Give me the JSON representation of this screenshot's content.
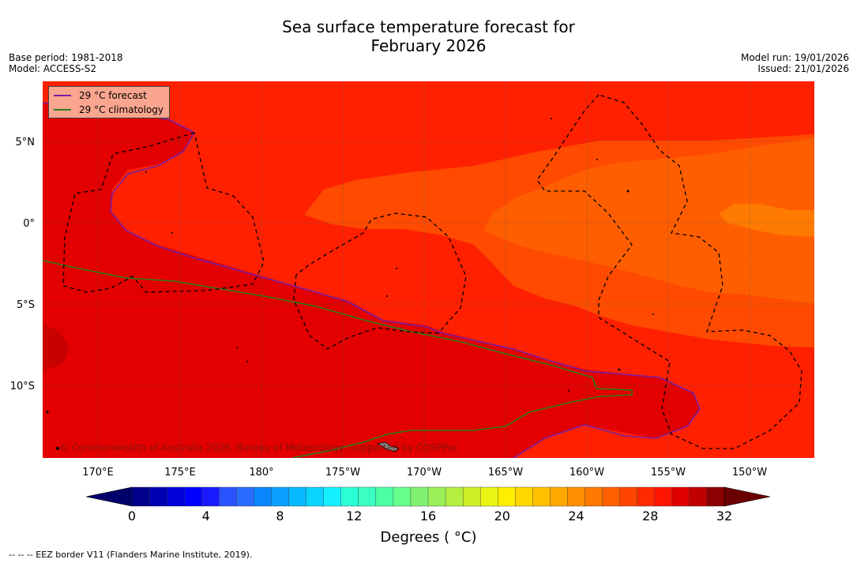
{
  "title_line1": "Sea surface temperature forecast for",
  "title_line2": "February 2026",
  "meta_left": {
    "base_period": "Base period: 1981-2018",
    "model": "Model: ACCESS-S2"
  },
  "meta_right": {
    "model_run": "Model run: 19/01/2026",
    "issued": "Issued: 21/01/2026"
  },
  "legend": {
    "forecast": {
      "label": "29 °C  forecast",
      "color": "#7a1fa2"
    },
    "climatology": {
      "label": "29 °C  climatology",
      "color": "#2e7d1f"
    }
  },
  "y_axis_labels": [
    "5°N",
    "0°",
    "5°S",
    "10°S"
  ],
  "x_axis_labels": [
    "170°E",
    "175°E",
    "180°",
    "175°W",
    "170°W",
    "165°W",
    "160°W",
    "155°W",
    "150°W"
  ],
  "copyright": "© Commonwealth of Australia 2026, Bureau of Meteorology, supported by COSPPac",
  "colorbar": {
    "tick_labels": [
      "0",
      "4",
      "8",
      "12",
      "16",
      "20",
      "24",
      "28",
      "32"
    ],
    "min": 0,
    "max": 32,
    "colors": [
      "#00008b",
      "#0000b3",
      "#0000d9",
      "#0000ff",
      "#1a1aff",
      "#2a52ff",
      "#2a6cff",
      "#0a86ff",
      "#0aa0ff",
      "#0abaff",
      "#0ad4ff",
      "#14f0ff",
      "#2affd8",
      "#3affc0",
      "#4affa6",
      "#66ff8c",
      "#80f070",
      "#9af058",
      "#b4f040",
      "#ceee28",
      "#e8f514",
      "#fff000",
      "#ffd800",
      "#ffc000",
      "#ffa800",
      "#ff9000",
      "#ff7800",
      "#ff6000",
      "#ff4500",
      "#ff2a00",
      "#ff1500",
      "#e00000",
      "#c00000",
      "#8b0000"
    ],
    "under_color": "#00006b",
    "over_color": "#6b0000",
    "title": "Degrees ( °C)"
  },
  "footnote": "--  --  -- EEZ border V11 (Flanders Marine Institute, 2019)."
}
